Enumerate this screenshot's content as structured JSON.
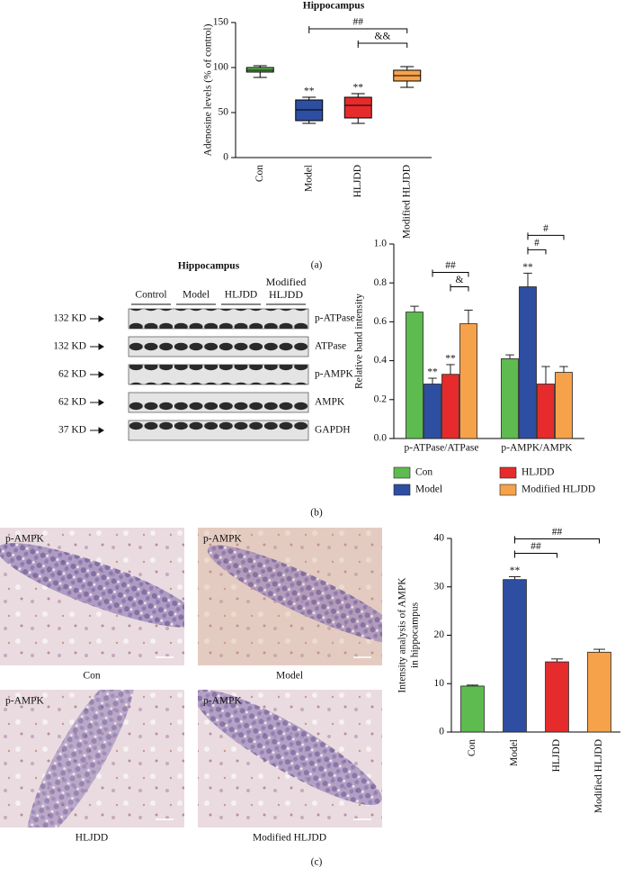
{
  "panel_labels": [
    "(a)",
    "(b)",
    "(c)"
  ],
  "blot": {
    "title": "Hippocampus",
    "lanes": [
      "Control",
      "Model",
      "HLJDD",
      "Modified HLJDD"
    ],
    "rows": [
      {
        "size": "132 KD",
        "protein": "p-ATPase"
      },
      {
        "size": "132 KD",
        "protein": "ATPase"
      },
      {
        "size": "62 KD",
        "protein": "p-AMPK"
      },
      {
        "size": "62 KD",
        "protein": "AMPK"
      },
      {
        "size": "37 KD",
        "protein": "GAPDH"
      }
    ]
  },
  "micrographs": [
    {
      "stain": "p-AMPK",
      "label": "Con"
    },
    {
      "stain": "p-AMPK",
      "label": "Model"
    },
    {
      "stain": "p-AMPK",
      "label": "HLJDD"
    },
    {
      "stain": "p-AMPK",
      "label": "Modified HLJDD"
    }
  ],
  "chart_data": [
    {
      "type": "box",
      "title": "Hippocampus",
      "ylabel": "Adenosine levels (% of control)",
      "categories": [
        "Con",
        "Model",
        "HLJDD",
        "Modified HLJDD"
      ],
      "colors": [
        "#5dbb4f",
        "#2e4ea1",
        "#e52b2b",
        "#f6a24a"
      ],
      "boxes": [
        {
          "min": 89,
          "q1": 95,
          "median": 97,
          "q3": 100,
          "max": 102
        },
        {
          "min": 38,
          "q1": 41,
          "median": 53,
          "q3": 64,
          "max": 67
        },
        {
          "min": 38,
          "q1": 44,
          "median": 58,
          "q3": 67,
          "max": 71
        },
        {
          "min": 78,
          "q1": 85,
          "median": 91,
          "q3": 97,
          "max": 101
        }
      ],
      "ylim": [
        0,
        150
      ],
      "yticks": [
        0,
        50,
        100,
        150
      ],
      "annotations": [
        {
          "text": "**",
          "category": "Model"
        },
        {
          "text": "**",
          "category": "HLJDD"
        },
        {
          "text": "##",
          "from": "Model",
          "to": "Modified HLJDD"
        },
        {
          "text": "&&",
          "from": "HLJDD",
          "to": "Modified HLJDD"
        }
      ]
    },
    {
      "type": "bar",
      "ylabel": "Relative band intensity",
      "categories": [
        "p-ATPase/ATPase",
        "p-AMPK/AMPK"
      ],
      "series": [
        {
          "name": "Con",
          "color": "#5dbb4f",
          "values": [
            0.65,
            0.41
          ],
          "errors": [
            0.03,
            0.02
          ]
        },
        {
          "name": "Model",
          "color": "#2e4ea1",
          "values": [
            0.28,
            0.78
          ],
          "errors": [
            0.03,
            0.07
          ]
        },
        {
          "name": "HLJDD",
          "color": "#e52b2b",
          "values": [
            0.33,
            0.28
          ],
          "errors": [
            0.05,
            0.09
          ]
        },
        {
          "name": "Modified HLJDD",
          "color": "#f6a24a",
          "values": [
            0.59,
            0.34
          ],
          "errors": [
            0.07,
            0.03
          ]
        }
      ],
      "ylim": [
        0,
        1.0
      ],
      "yticks": [
        {
          "value": 0,
          "label": "0.0"
        },
        0.2,
        0.4,
        0.6,
        0.8,
        {
          "value": 1.0,
          "label": "1.0"
        }
      ],
      "legend": "bottom",
      "annotations": [
        {
          "text": "**",
          "group": "p-ATPase/ATPase",
          "series": "Model"
        },
        {
          "text": "**",
          "group": "p-ATPase/ATPase",
          "series": "HLJDD"
        },
        {
          "text": "**",
          "group": "p-AMPK/AMPK",
          "series": "Model"
        },
        {
          "text": "##",
          "group": "p-ATPase/ATPase",
          "from": "Model",
          "to": "Modified HLJDD"
        },
        {
          "text": "&",
          "group": "p-ATPase/ATPase",
          "from": "HLJDD",
          "to": "Modified HLJDD"
        },
        {
          "text": "#",
          "group": "p-AMPK/AMPK",
          "from": "Model",
          "to": "HLJDD"
        },
        {
          "text": "#",
          "group": "p-AMPK/AMPK",
          "from": "Model",
          "to": "Modified HLJDD"
        }
      ]
    },
    {
      "type": "bar",
      "ylabel": [
        "Intensity analysis of AMPK",
        "in hippocampus"
      ],
      "categories": [
        "Con",
        "Model",
        "HLJDD",
        "Modified HLJDD"
      ],
      "values": [
        9.5,
        31.5,
        14.5,
        16.5
      ],
      "errors": [
        0.2,
        0.6,
        0.6,
        0.6
      ],
      "colors": [
        "#5dbb4f",
        "#2e4ea1",
        "#e52b2b",
        "#f6a24a"
      ],
      "ylim": [
        0,
        40
      ],
      "yticks": [
        0,
        10,
        20,
        30,
        40
      ],
      "annotations": [
        {
          "text": "**",
          "category": "Model"
        },
        {
          "text": "##",
          "from": "Model",
          "to": "HLJDD"
        },
        {
          "text": "##",
          "from": "Model",
          "to": "Modified HLJDD"
        }
      ]
    }
  ]
}
